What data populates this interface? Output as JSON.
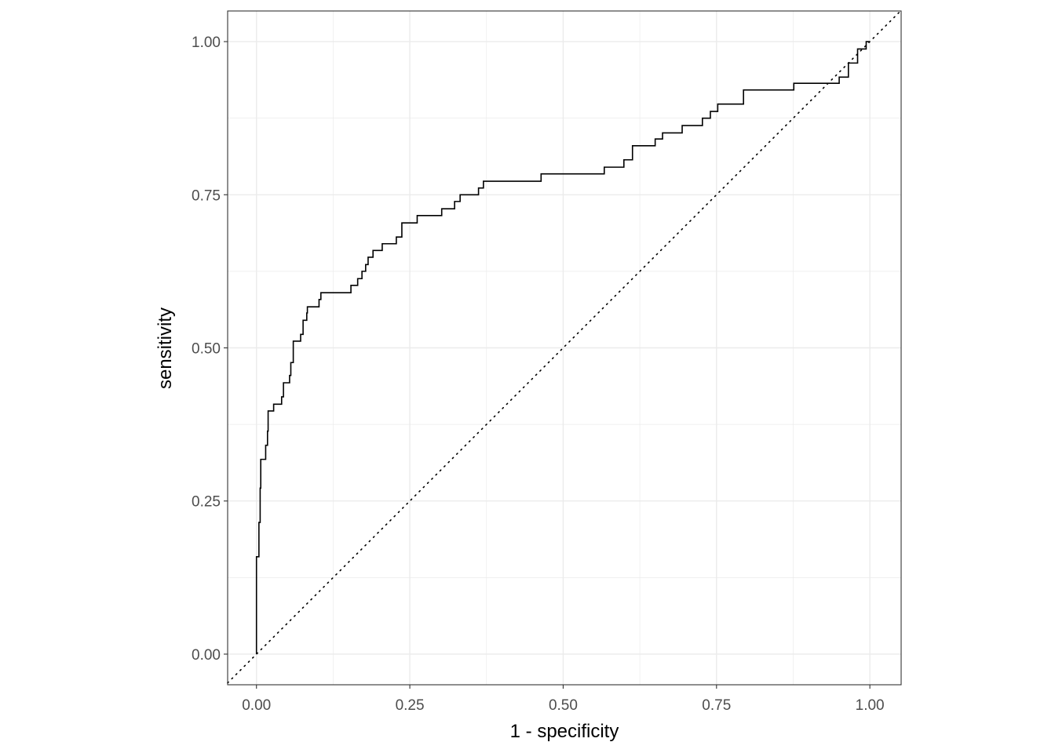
{
  "chart_data": {
    "type": "line",
    "step": true,
    "title": "",
    "xlabel": "1 - specificity",
    "ylabel": "sensitivity",
    "xlim": [
      -0.047,
      1.051
    ],
    "ylim": [
      -0.05,
      1.05
    ],
    "xticks": [
      0,
      0.25,
      0.5,
      0.75,
      1
    ],
    "yticks": [
      0,
      0.25,
      0.5,
      0.75,
      1
    ],
    "xtick_labels": [
      "0.00",
      "0.25",
      "0.50",
      "0.75",
      "1.00"
    ],
    "ytick_labels": [
      "0.00",
      "0.25",
      "0.50",
      "0.75",
      "1.00"
    ],
    "grid": true,
    "reference_line": {
      "slope": 1,
      "intercept": 0,
      "style": "dotted"
    },
    "colors": {
      "curve": "#000000",
      "grid": "#ebebeb",
      "border": "#333333"
    },
    "series": [
      {
        "x": [
          0,
          0,
          0.004,
          0.006,
          0.007,
          0.015,
          0.018,
          0.019,
          0.028,
          0.041,
          0.044,
          0.054,
          0.056,
          0.06,
          0.072,
          0.076,
          0.082,
          0.083,
          0.102,
          0.105,
          0.154,
          0.165,
          0.172,
          0.178,
          0.182,
          0.19,
          0.205,
          0.228,
          0.237,
          0.262,
          0.302,
          0.323,
          0.332,
          0.362,
          0.37,
          0.464,
          0.567,
          0.599,
          0.613,
          0.65,
          0.662,
          0.694,
          0.727,
          0.74,
          0.752,
          0.794,
          0.876,
          0.95,
          0.965,
          0.98,
          0.994,
          1
        ],
        "y": [
          0,
          0.159,
          0.215,
          0.271,
          0.318,
          0.341,
          0.364,
          0.397,
          0.408,
          0.42,
          0.443,
          0.455,
          0.476,
          0.511,
          0.522,
          0.545,
          0.557,
          0.567,
          0.579,
          0.59,
          0.602,
          0.613,
          0.625,
          0.636,
          0.648,
          0.659,
          0.67,
          0.681,
          0.704,
          0.716,
          0.727,
          0.739,
          0.75,
          0.761,
          0.772,
          0.784,
          0.795,
          0.807,
          0.83,
          0.841,
          0.851,
          0.863,
          0.875,
          0.886,
          0.898,
          0.921,
          0.932,
          0.942,
          0.965,
          0.988,
          1,
          1
        ]
      }
    ]
  }
}
